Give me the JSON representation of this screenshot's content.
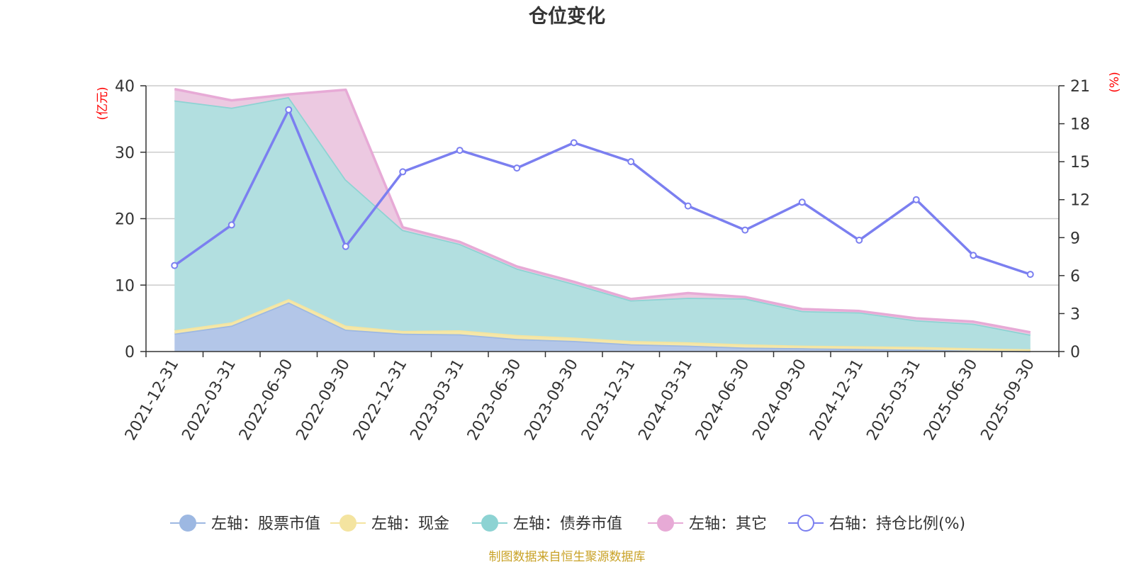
{
  "chart_data": {
    "type": "area",
    "title": "仓位变化",
    "left_axis": {
      "unit": "(亿元)",
      "min": 0,
      "max": 40,
      "ticks": [
        "0",
        "10",
        "20",
        "30",
        "40"
      ]
    },
    "right_axis": {
      "unit": "(%)",
      "min": 0,
      "max": 21,
      "ticks": [
        "0",
        "3",
        "6",
        "9",
        "12",
        "15",
        "18",
        "21"
      ]
    },
    "categories": [
      "2021-12-31",
      "2022-03-31",
      "2022-06-30",
      "2022-09-30",
      "2022-12-31",
      "2023-03-31",
      "2023-06-30",
      "2023-09-30",
      "2023-12-31",
      "2024-03-31",
      "2024-06-30",
      "2024-09-30",
      "2024-12-31",
      "2025-03-31",
      "2025-06-30",
      "2025-09-30"
    ],
    "stacked_series": [
      {
        "name": "左轴：股票市值",
        "color": "#9db8e2",
        "fill": "#b3c6e8",
        "values": [
          2.7,
          3.9,
          7.4,
          3.3,
          2.7,
          2.6,
          1.9,
          1.6,
          1.1,
          0.9,
          0.6,
          0.5,
          0.4,
          0.3,
          0.15,
          0.05
        ]
      },
      {
        "name": "左轴：现金",
        "color": "#f4e4a0",
        "fill": "#f5e7a8",
        "values": [
          0.5,
          0.5,
          0.5,
          0.6,
          0.4,
          0.6,
          0.6,
          0.5,
          0.5,
          0.5,
          0.5,
          0.4,
          0.4,
          0.4,
          0.35,
          0.3
        ]
      },
      {
        "name": "左轴：债券市值",
        "color": "#8dd3d3",
        "fill": "#b2dfe0",
        "values": [
          34.6,
          32.3,
          30.4,
          22.0,
          15.2,
          13.0,
          10.0,
          8.1,
          6.1,
          6.7,
          6.9,
          5.2,
          5.1,
          4.0,
          3.7,
          2.2
        ]
      },
      {
        "name": "左轴：其它",
        "color": "#e7aad6",
        "fill": "#ecc9e1",
        "values": [
          1.7,
          1.1,
          0.4,
          13.5,
          0.4,
          0.3,
          0.3,
          0.3,
          0.2,
          0.7,
          0.2,
          0.3,
          0.2,
          0.3,
          0.3,
          0.35
        ]
      }
    ],
    "line_series": {
      "name": "右轴：持仓比例(%)",
      "color": "#7b7ff0",
      "values": [
        6.8,
        10.0,
        19.1,
        8.3,
        14.2,
        15.9,
        14.5,
        16.5,
        15.0,
        11.5,
        9.6,
        11.8,
        8.8,
        12.0,
        7.6,
        6.1
      ]
    },
    "source": "制图数据来自恒生聚源数据库"
  }
}
